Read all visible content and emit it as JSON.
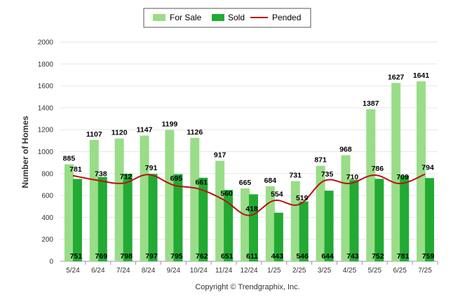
{
  "chart_data": {
    "type": "bar",
    "categories": [
      "5/24",
      "6/24",
      "7/24",
      "8/24",
      "9/24",
      "10/24",
      "11/24",
      "12/24",
      "1/25",
      "2/25",
      "3/25",
      "4/25",
      "5/25",
      "6/25",
      "7/25"
    ],
    "series": [
      {
        "name": "For Sale",
        "type": "bar",
        "color": "#99dd88",
        "values": [
          885,
          1107,
          1120,
          1147,
          1199,
          1126,
          917,
          665,
          684,
          731,
          871,
          968,
          1387,
          1627,
          1641
        ]
      },
      {
        "name": "Sold",
        "type": "bar",
        "color": "#22aa33",
        "values": [
          751,
          769,
          798,
          797,
          795,
          762,
          651,
          611,
          443,
          546,
          644,
          743,
          752,
          781,
          759
        ]
      },
      {
        "name": "Pended",
        "type": "line",
        "color": "#bb1111",
        "values": [
          781,
          738,
          712,
          791,
          695,
          661,
          560,
          418,
          554,
          519,
          735,
          710,
          786,
          709,
          794
        ]
      }
    ],
    "xlabel": "",
    "ylabel": "Number of Homes",
    "ylim": [
      0,
      2000
    ],
    "yticks": [
      0,
      200,
      400,
      600,
      800,
      1000,
      1200,
      1400,
      1600,
      1800,
      2000
    ],
    "grid": true,
    "legend_position": "top-center",
    "credit": "Copyright © Trendgraphix, Inc."
  }
}
